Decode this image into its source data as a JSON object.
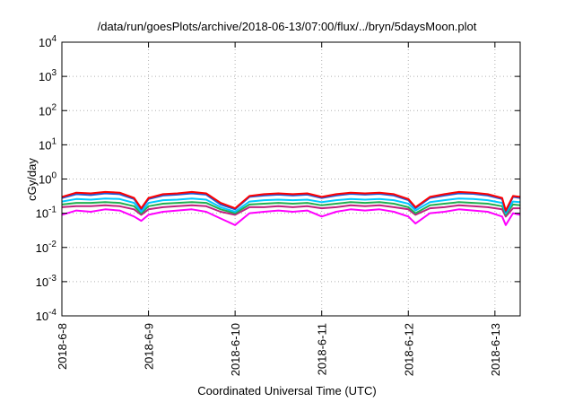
{
  "chart_data": {
    "type": "line",
    "title": "/data/run/goesPlots/archive/2018-06-13/07:00/flux/../bryn/5daysMoon.plot",
    "xlabel": "Coordinated Universal Time (UTC)",
    "ylabel": "cGy/day",
    "yscale": "log",
    "ylim": [
      0.0001,
      10000
    ],
    "y_tick_labels": [
      {
        "base": "10",
        "exp": "-4",
        "value": 0.0001
      },
      {
        "base": "10",
        "exp": "-3",
        "value": 0.001
      },
      {
        "base": "10",
        "exp": "-2",
        "value": 0.01
      },
      {
        "base": "10",
        "exp": "-1",
        "value": 0.1
      },
      {
        "base": "10",
        "exp": "0",
        "value": 1
      },
      {
        "base": "10",
        "exp": "1",
        "value": 10
      },
      {
        "base": "10",
        "exp": "2",
        "value": 100
      },
      {
        "base": "10",
        "exp": "3",
        "value": 1000
      },
      {
        "base": "10",
        "exp": "4",
        "value": 10000
      }
    ],
    "xlim": [
      "2018-06-08T00:00",
      "2018-06-13T07:00"
    ],
    "x_tick_labels": [
      "2018-6-8",
      "2018-6-9",
      "2018-6-10",
      "2018-6-11",
      "2018-6-12",
      "2018-6-13"
    ],
    "grid": true,
    "series": [
      {
        "color": "#ff0000",
        "values": [
          {
            "x": "2018-06-08T00:00",
            "y": 0.3
          },
          {
            "x": "2018-06-08T04:00",
            "y": 0.4
          },
          {
            "x": "2018-06-08T08:00",
            "y": 0.38
          },
          {
            "x": "2018-06-08T12:00",
            "y": 0.42
          },
          {
            "x": "2018-06-08T16:00",
            "y": 0.4
          },
          {
            "x": "2018-06-08T20:00",
            "y": 0.28
          },
          {
            "x": "2018-06-08T22:00",
            "y": 0.14
          },
          {
            "x": "2018-06-09T00:00",
            "y": 0.28
          },
          {
            "x": "2018-06-09T04:00",
            "y": 0.36
          },
          {
            "x": "2018-06-09T08:00",
            "y": 0.38
          },
          {
            "x": "2018-06-09T12:00",
            "y": 0.42
          },
          {
            "x": "2018-06-09T16:00",
            "y": 0.38
          },
          {
            "x": "2018-06-09T20:00",
            "y": 0.2
          },
          {
            "x": "2018-06-10T00:00",
            "y": 0.14
          },
          {
            "x": "2018-06-10T04:00",
            "y": 0.32
          },
          {
            "x": "2018-06-10T08:00",
            "y": 0.36
          },
          {
            "x": "2018-06-10T12:00",
            "y": 0.38
          },
          {
            "x": "2018-06-10T16:00",
            "y": 0.36
          },
          {
            "x": "2018-06-10T20:00",
            "y": 0.38
          },
          {
            "x": "2018-06-11T00:00",
            "y": 0.3
          },
          {
            "x": "2018-06-11T04:00",
            "y": 0.36
          },
          {
            "x": "2018-06-11T08:00",
            "y": 0.4
          },
          {
            "x": "2018-06-11T12:00",
            "y": 0.38
          },
          {
            "x": "2018-06-11T16:00",
            "y": 0.4
          },
          {
            "x": "2018-06-11T20:00",
            "y": 0.36
          },
          {
            "x": "2018-06-12T00:00",
            "y": 0.26
          },
          {
            "x": "2018-06-12T02:00",
            "y": 0.15
          },
          {
            "x": "2018-06-12T06:00",
            "y": 0.3
          },
          {
            "x": "2018-06-12T10:00",
            "y": 0.36
          },
          {
            "x": "2018-06-12T14:00",
            "y": 0.42
          },
          {
            "x": "2018-06-12T18:00",
            "y": 0.4
          },
          {
            "x": "2018-06-12T22:00",
            "y": 0.36
          },
          {
            "x": "2018-06-13T02:00",
            "y": 0.28
          },
          {
            "x": "2018-06-13T03:00",
            "y": 0.12
          },
          {
            "x": "2018-06-13T05:00",
            "y": 0.32
          },
          {
            "x": "2018-06-13T07:00",
            "y": 0.3
          }
        ]
      },
      {
        "color": "#1e5bd8",
        "values": [
          {
            "x": "2018-06-08T00:00",
            "y": 0.28
          },
          {
            "x": "2018-06-08T04:00",
            "y": 0.36
          },
          {
            "x": "2018-06-08T08:00",
            "y": 0.34
          },
          {
            "x": "2018-06-08T12:00",
            "y": 0.38
          },
          {
            "x": "2018-06-08T16:00",
            "y": 0.36
          },
          {
            "x": "2018-06-08T20:00",
            "y": 0.26
          },
          {
            "x": "2018-06-08T22:00",
            "y": 0.13
          },
          {
            "x": "2018-06-09T00:00",
            "y": 0.26
          },
          {
            "x": "2018-06-09T04:00",
            "y": 0.33
          },
          {
            "x": "2018-06-09T08:00",
            "y": 0.35
          },
          {
            "x": "2018-06-09T12:00",
            "y": 0.38
          },
          {
            "x": "2018-06-09T16:00",
            "y": 0.35
          },
          {
            "x": "2018-06-09T20:00",
            "y": 0.18
          },
          {
            "x": "2018-06-10T00:00",
            "y": 0.13
          },
          {
            "x": "2018-06-10T04:00",
            "y": 0.3
          },
          {
            "x": "2018-06-10T08:00",
            "y": 0.33
          },
          {
            "x": "2018-06-10T12:00",
            "y": 0.35
          },
          {
            "x": "2018-06-10T16:00",
            "y": 0.33
          },
          {
            "x": "2018-06-10T20:00",
            "y": 0.35
          },
          {
            "x": "2018-06-11T00:00",
            "y": 0.28
          },
          {
            "x": "2018-06-11T04:00",
            "y": 0.33
          },
          {
            "x": "2018-06-11T08:00",
            "y": 0.37
          },
          {
            "x": "2018-06-11T12:00",
            "y": 0.35
          },
          {
            "x": "2018-06-11T16:00",
            "y": 0.37
          },
          {
            "x": "2018-06-11T20:00",
            "y": 0.33
          },
          {
            "x": "2018-06-12T00:00",
            "y": 0.24
          },
          {
            "x": "2018-06-12T02:00",
            "y": 0.14
          },
          {
            "x": "2018-06-12T06:00",
            "y": 0.28
          },
          {
            "x": "2018-06-12T10:00",
            "y": 0.33
          },
          {
            "x": "2018-06-12T14:00",
            "y": 0.38
          },
          {
            "x": "2018-06-12T18:00",
            "y": 0.37
          },
          {
            "x": "2018-06-12T22:00",
            "y": 0.33
          },
          {
            "x": "2018-06-13T02:00",
            "y": 0.26
          },
          {
            "x": "2018-06-13T03:00",
            "y": 0.11
          },
          {
            "x": "2018-06-13T05:00",
            "y": 0.3
          },
          {
            "x": "2018-06-13T07:00",
            "y": 0.28
          }
        ]
      },
      {
        "color": "#00c8ff",
        "values": [
          {
            "x": "2018-06-08T00:00",
            "y": 0.22
          },
          {
            "x": "2018-06-08T04:00",
            "y": 0.26
          },
          {
            "x": "2018-06-08T08:00",
            "y": 0.25
          },
          {
            "x": "2018-06-08T12:00",
            "y": 0.27
          },
          {
            "x": "2018-06-08T16:00",
            "y": 0.26
          },
          {
            "x": "2018-06-08T20:00",
            "y": 0.2
          },
          {
            "x": "2018-06-08T22:00",
            "y": 0.11
          },
          {
            "x": "2018-06-09T00:00",
            "y": 0.2
          },
          {
            "x": "2018-06-09T04:00",
            "y": 0.24
          },
          {
            "x": "2018-06-09T08:00",
            "y": 0.25
          },
          {
            "x": "2018-06-09T12:00",
            "y": 0.27
          },
          {
            "x": "2018-06-09T16:00",
            "y": 0.25
          },
          {
            "x": "2018-06-09T20:00",
            "y": 0.15
          },
          {
            "x": "2018-06-10T00:00",
            "y": 0.11
          },
          {
            "x": "2018-06-10T04:00",
            "y": 0.22
          },
          {
            "x": "2018-06-10T08:00",
            "y": 0.24
          },
          {
            "x": "2018-06-10T12:00",
            "y": 0.25
          },
          {
            "x": "2018-06-10T16:00",
            "y": 0.24
          },
          {
            "x": "2018-06-10T20:00",
            "y": 0.25
          },
          {
            "x": "2018-06-11T00:00",
            "y": 0.21
          },
          {
            "x": "2018-06-11T04:00",
            "y": 0.24
          },
          {
            "x": "2018-06-11T08:00",
            "y": 0.26
          },
          {
            "x": "2018-06-11T12:00",
            "y": 0.25
          },
          {
            "x": "2018-06-11T16:00",
            "y": 0.26
          },
          {
            "x": "2018-06-11T20:00",
            "y": 0.24
          },
          {
            "x": "2018-06-12T00:00",
            "y": 0.19
          },
          {
            "x": "2018-06-12T02:00",
            "y": 0.12
          },
          {
            "x": "2018-06-12T06:00",
            "y": 0.21
          },
          {
            "x": "2018-06-12T10:00",
            "y": 0.24
          },
          {
            "x": "2018-06-12T14:00",
            "y": 0.27
          },
          {
            "x": "2018-06-12T18:00",
            "y": 0.26
          },
          {
            "x": "2018-06-12T22:00",
            "y": 0.24
          },
          {
            "x": "2018-06-13T02:00",
            "y": 0.2
          },
          {
            "x": "2018-06-13T03:00",
            "y": 0.1
          },
          {
            "x": "2018-06-13T05:00",
            "y": 0.22
          },
          {
            "x": "2018-06-13T07:00",
            "y": 0.21
          }
        ]
      },
      {
        "color": "#20b050",
        "values": [
          {
            "x": "2018-06-08T00:00",
            "y": 0.18
          },
          {
            "x": "2018-06-08T04:00",
            "y": 0.2
          },
          {
            "x": "2018-06-08T08:00",
            "y": 0.2
          },
          {
            "x": "2018-06-08T12:00",
            "y": 0.21
          },
          {
            "x": "2018-06-08T16:00",
            "y": 0.2
          },
          {
            "x": "2018-06-08T20:00",
            "y": 0.16
          },
          {
            "x": "2018-06-08T22:00",
            "y": 0.1
          },
          {
            "x": "2018-06-09T00:00",
            "y": 0.16
          },
          {
            "x": "2018-06-09T04:00",
            "y": 0.19
          },
          {
            "x": "2018-06-09T08:00",
            "y": 0.2
          },
          {
            "x": "2018-06-09T12:00",
            "y": 0.21
          },
          {
            "x": "2018-06-09T16:00",
            "y": 0.2
          },
          {
            "x": "2018-06-09T20:00",
            "y": 0.13
          },
          {
            "x": "2018-06-10T00:00",
            "y": 0.1
          },
          {
            "x": "2018-06-10T04:00",
            "y": 0.18
          },
          {
            "x": "2018-06-10T08:00",
            "y": 0.19
          },
          {
            "x": "2018-06-10T12:00",
            "y": 0.2
          },
          {
            "x": "2018-06-10T16:00",
            "y": 0.19
          },
          {
            "x": "2018-06-10T20:00",
            "y": 0.2
          },
          {
            "x": "2018-06-11T00:00",
            "y": 0.17
          },
          {
            "x": "2018-06-11T04:00",
            "y": 0.19
          },
          {
            "x": "2018-06-11T08:00",
            "y": 0.21
          },
          {
            "x": "2018-06-11T12:00",
            "y": 0.2
          },
          {
            "x": "2018-06-11T16:00",
            "y": 0.21
          },
          {
            "x": "2018-06-11T20:00",
            "y": 0.19
          },
          {
            "x": "2018-06-12T00:00",
            "y": 0.15
          },
          {
            "x": "2018-06-12T02:00",
            "y": 0.1
          },
          {
            "x": "2018-06-12T06:00",
            "y": 0.17
          },
          {
            "x": "2018-06-12T10:00",
            "y": 0.19
          },
          {
            "x": "2018-06-12T14:00",
            "y": 0.21
          },
          {
            "x": "2018-06-12T18:00",
            "y": 0.2
          },
          {
            "x": "2018-06-12T22:00",
            "y": 0.19
          },
          {
            "x": "2018-06-13T02:00",
            "y": 0.16
          },
          {
            "x": "2018-06-13T03:00",
            "y": 0.09
          },
          {
            "x": "2018-06-13T05:00",
            "y": 0.18
          },
          {
            "x": "2018-06-13T07:00",
            "y": 0.17
          }
        ]
      },
      {
        "color": "#c02080",
        "values": [
          {
            "x": "2018-06-08T00:00",
            "y": 0.15
          },
          {
            "x": "2018-06-08T04:00",
            "y": 0.16
          },
          {
            "x": "2018-06-08T08:00",
            "y": 0.16
          },
          {
            "x": "2018-06-08T12:00",
            "y": 0.17
          },
          {
            "x": "2018-06-08T16:00",
            "y": 0.16
          },
          {
            "x": "2018-06-08T20:00",
            "y": 0.13
          },
          {
            "x": "2018-06-08T22:00",
            "y": 0.09
          },
          {
            "x": "2018-06-09T00:00",
            "y": 0.13
          },
          {
            "x": "2018-06-09T04:00",
            "y": 0.15
          },
          {
            "x": "2018-06-09T08:00",
            "y": 0.16
          },
          {
            "x": "2018-06-09T12:00",
            "y": 0.17
          },
          {
            "x": "2018-06-09T16:00",
            "y": 0.16
          },
          {
            "x": "2018-06-09T20:00",
            "y": 0.11
          },
          {
            "x": "2018-06-10T00:00",
            "y": 0.09
          },
          {
            "x": "2018-06-10T04:00",
            "y": 0.15
          },
          {
            "x": "2018-06-10T08:00",
            "y": 0.15
          },
          {
            "x": "2018-06-10T12:00",
            "y": 0.16
          },
          {
            "x": "2018-06-10T16:00",
            "y": 0.15
          },
          {
            "x": "2018-06-10T20:00",
            "y": 0.16
          },
          {
            "x": "2018-06-11T00:00",
            "y": 0.14
          },
          {
            "x": "2018-06-11T04:00",
            "y": 0.15
          },
          {
            "x": "2018-06-11T08:00",
            "y": 0.17
          },
          {
            "x": "2018-06-11T12:00",
            "y": 0.16
          },
          {
            "x": "2018-06-11T16:00",
            "y": 0.17
          },
          {
            "x": "2018-06-11T20:00",
            "y": 0.15
          },
          {
            "x": "2018-06-12T00:00",
            "y": 0.13
          },
          {
            "x": "2018-06-12T02:00",
            "y": 0.09
          },
          {
            "x": "2018-06-12T06:00",
            "y": 0.14
          },
          {
            "x": "2018-06-12T10:00",
            "y": 0.15
          },
          {
            "x": "2018-06-12T14:00",
            "y": 0.17
          },
          {
            "x": "2018-06-12T18:00",
            "y": 0.16
          },
          {
            "x": "2018-06-12T22:00",
            "y": 0.15
          },
          {
            "x": "2018-06-13T02:00",
            "y": 0.13
          },
          {
            "x": "2018-06-13T03:00",
            "y": 0.08
          },
          {
            "x": "2018-06-13T05:00",
            "y": 0.14
          },
          {
            "x": "2018-06-13T07:00",
            "y": 0.14
          }
        ]
      },
      {
        "color": "#ff00ff",
        "values": [
          {
            "x": "2018-06-08T00:00",
            "y": 0.09
          },
          {
            "x": "2018-06-08T04:00",
            "y": 0.12
          },
          {
            "x": "2018-06-08T08:00",
            "y": 0.11
          },
          {
            "x": "2018-06-08T12:00",
            "y": 0.13
          },
          {
            "x": "2018-06-08T16:00",
            "y": 0.12
          },
          {
            "x": "2018-06-08T20:00",
            "y": 0.08
          },
          {
            "x": "2018-06-08T22:00",
            "y": 0.06
          },
          {
            "x": "2018-06-09T00:00",
            "y": 0.09
          },
          {
            "x": "2018-06-09T04:00",
            "y": 0.11
          },
          {
            "x": "2018-06-09T08:00",
            "y": 0.12
          },
          {
            "x": "2018-06-09T12:00",
            "y": 0.13
          },
          {
            "x": "2018-06-09T16:00",
            "y": 0.11
          },
          {
            "x": "2018-06-09T20:00",
            "y": 0.07
          },
          {
            "x": "2018-06-10T00:00",
            "y": 0.045
          },
          {
            "x": "2018-06-10T04:00",
            "y": 0.1
          },
          {
            "x": "2018-06-10T08:00",
            "y": 0.11
          },
          {
            "x": "2018-06-10T12:00",
            "y": 0.12
          },
          {
            "x": "2018-06-10T16:00",
            "y": 0.11
          },
          {
            "x": "2018-06-10T20:00",
            "y": 0.12
          },
          {
            "x": "2018-06-11T00:00",
            "y": 0.08
          },
          {
            "x": "2018-06-11T04:00",
            "y": 0.11
          },
          {
            "x": "2018-06-11T08:00",
            "y": 0.13
          },
          {
            "x": "2018-06-11T12:00",
            "y": 0.12
          },
          {
            "x": "2018-06-11T16:00",
            "y": 0.13
          },
          {
            "x": "2018-06-11T20:00",
            "y": 0.11
          },
          {
            "x": "2018-06-12T00:00",
            "y": 0.08
          },
          {
            "x": "2018-06-12T02:00",
            "y": 0.05
          },
          {
            "x": "2018-06-12T06:00",
            "y": 0.1
          },
          {
            "x": "2018-06-12T10:00",
            "y": 0.11
          },
          {
            "x": "2018-06-12T14:00",
            "y": 0.13
          },
          {
            "x": "2018-06-12T18:00",
            "y": 0.12
          },
          {
            "x": "2018-06-12T22:00",
            "y": 0.11
          },
          {
            "x": "2018-06-13T02:00",
            "y": 0.08
          },
          {
            "x": "2018-06-13T03:00",
            "y": 0.045
          },
          {
            "x": "2018-06-13T05:00",
            "y": 0.1
          },
          {
            "x": "2018-06-13T07:00",
            "y": 0.09
          }
        ]
      }
    ]
  }
}
